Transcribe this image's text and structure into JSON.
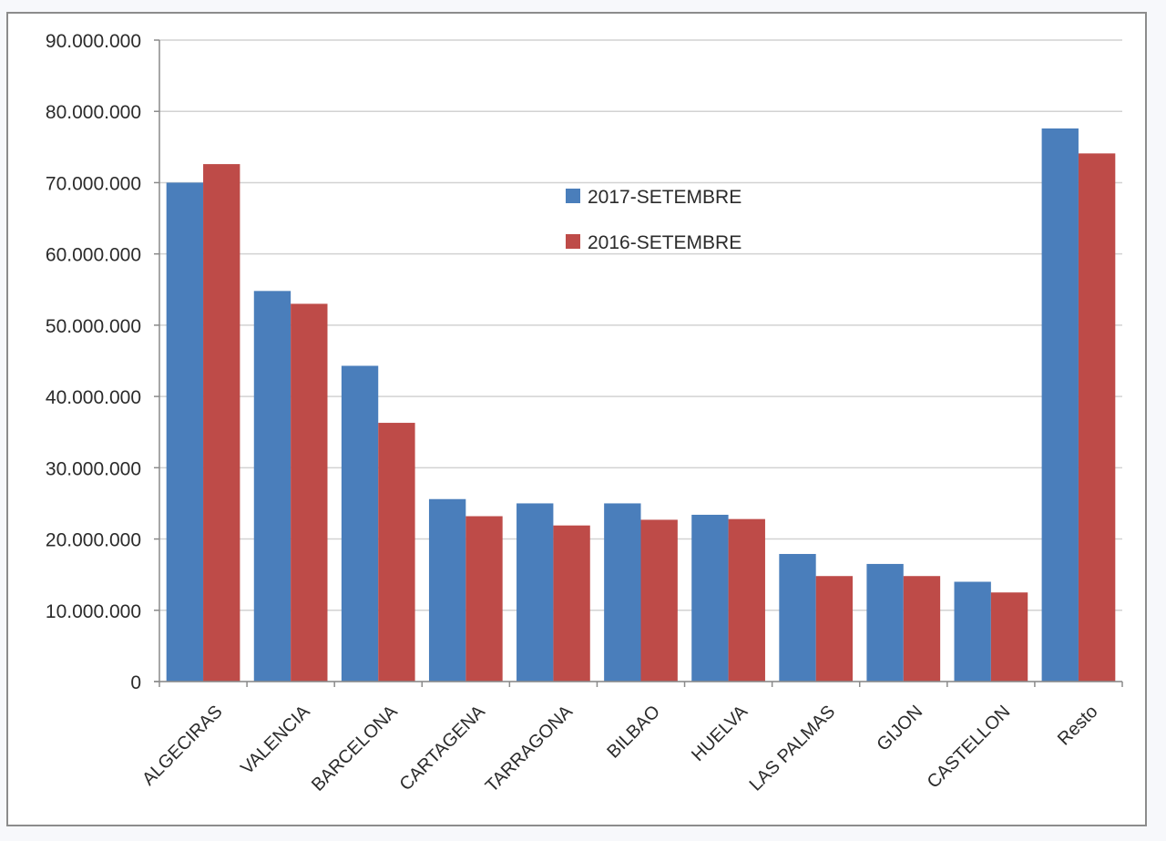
{
  "chart_data": {
    "type": "bar",
    "title": "",
    "xlabel": "",
    "ylabel": "",
    "ylim": [
      0,
      90000000
    ],
    "yticks": [
      {
        "value": 0,
        "label": "0"
      },
      {
        "value": 10000000,
        "label": "10.000.000"
      },
      {
        "value": 20000000,
        "label": "20.000.000"
      },
      {
        "value": 30000000,
        "label": "30.000.000"
      },
      {
        "value": 40000000,
        "label": "40.000.000"
      },
      {
        "value": 50000000,
        "label": "50.000.000"
      },
      {
        "value": 60000000,
        "label": "60.000.000"
      },
      {
        "value": 70000000,
        "label": "70.000.000"
      },
      {
        "value": 80000000,
        "label": "80.000.000"
      },
      {
        "value": 90000000,
        "label": "90.000.000"
      }
    ],
    "categories": [
      "ALGECIRAS",
      "VALENCIA",
      "BARCELONA",
      "CARTAGENA",
      "TARRAGONA",
      "BILBAO",
      "HUELVA",
      "LAS PALMAS",
      "GIJON",
      "CASTELLON",
      "Resto"
    ],
    "series": [
      {
        "name": "2017-SETEMBRE",
        "color": "#4a7ebb",
        "values": [
          70000000,
          54800000,
          44300000,
          25600000,
          25000000,
          25000000,
          23400000,
          17900000,
          16500000,
          14000000,
          77600000
        ]
      },
      {
        "name": "2016-SETEMBRE",
        "color": "#be4b48",
        "values": [
          72600000,
          53000000,
          36300000,
          23200000,
          21900000,
          22700000,
          22800000,
          14800000,
          14800000,
          12500000,
          74100000
        ]
      }
    ],
    "legend": "top-center",
    "grid": true
  },
  "colors": {
    "gridline": "#d2d2d2",
    "axis": "#8a8a8a",
    "border": "#8c8c8c",
    "text": "#2b2b2b"
  }
}
